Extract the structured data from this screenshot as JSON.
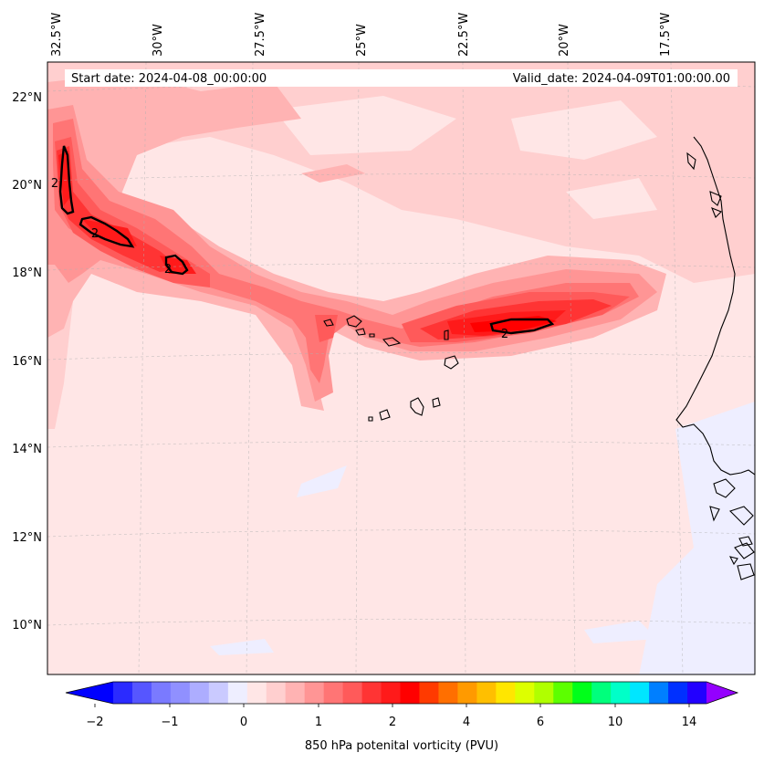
{
  "header": {
    "start_date": "Start date: 2024-04-08_00:00:00",
    "valid_date": "Valid_date: 2024-04-09T01:00:00.00"
  },
  "lon_labels": [
    "32.5°W",
    "30°W",
    "27.5°W",
    "25°W",
    "22.5°W",
    "20°W",
    "17.5°W"
  ],
  "lat_labels": [
    "22°N",
    "20°N",
    "18°N",
    "16°N",
    "14°N",
    "12°N",
    "10°N"
  ],
  "contour_label": "2",
  "colorbar": {
    "label": "850 hPa potenital vorticity (PVU)",
    "ticks": [
      "−2",
      "−1",
      "0",
      "1",
      "2",
      "4",
      "6",
      "10",
      "14"
    ],
    "colors": [
      "#0000ff",
      "#2b2bff",
      "#5656ff",
      "#7a7aff",
      "#9090ff",
      "#adadff",
      "#cacaff",
      "#eeeeff",
      "#ffe6e6",
      "#ffcfcf",
      "#ffb3b3",
      "#ff9595",
      "#ff7575",
      "#ff5a5a",
      "#ff3434",
      "#ff1a1a",
      "#ff0000",
      "#ff3a00",
      "#ff6f00",
      "#ff9a00",
      "#ffbf00",
      "#ffe600",
      "#ddff00",
      "#b0ff00",
      "#5cff00",
      "#00ff1a",
      "#00ff7c",
      "#00ffc8",
      "#00e6ff",
      "#007fff",
      "#0030ff",
      "#2200ff",
      "#9400ff"
    ]
  }
}
